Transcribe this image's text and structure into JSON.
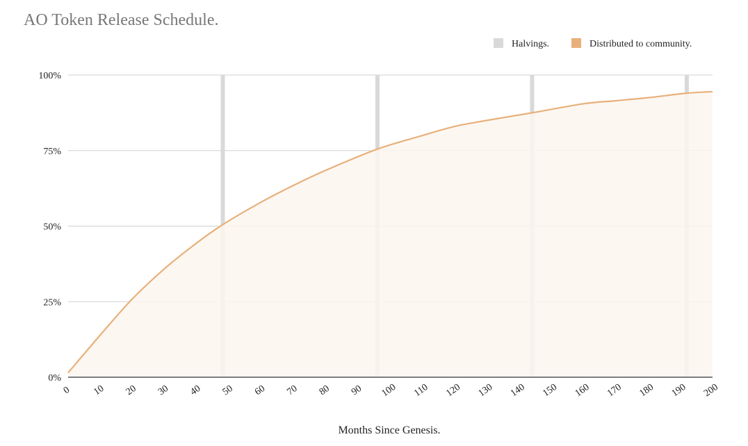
{
  "chart_data": {
    "type": "area",
    "title": "AO Token Release Schedule.",
    "xlabel": "Months Since Genesis.",
    "ylabel": "",
    "xlim": [
      0,
      200
    ],
    "ylim": [
      0,
      100
    ],
    "x_ticks": [
      0,
      10,
      20,
      30,
      40,
      50,
      60,
      70,
      80,
      90,
      100,
      110,
      120,
      130,
      140,
      150,
      160,
      170,
      180,
      190,
      200
    ],
    "y_ticks": [
      {
        "value": 0,
        "label": "0%"
      },
      {
        "value": 25,
        "label": "25%"
      },
      {
        "value": 50,
        "label": "50%"
      },
      {
        "value": 75,
        "label": "75%"
      },
      {
        "value": 100,
        "label": "100%"
      }
    ],
    "grid": true,
    "legend": {
      "position": "top-right",
      "entries": [
        {
          "name": "Halvings.",
          "color": "#d9d9d9"
        },
        {
          "name": "Distributed to community.",
          "color": "#e8b07a"
        }
      ]
    },
    "halvings": [
      48,
      96,
      144,
      192
    ],
    "series": [
      {
        "name": "Distributed to community.",
        "color": "#e8b07a",
        "fill": "#fdf6f0",
        "x": [
          0,
          10,
          20,
          30,
          40,
          48,
          60,
          70,
          80,
          96,
          110,
          120,
          130,
          144,
          160,
          170,
          180,
          192,
          200
        ],
        "y": [
          1.5,
          14,
          26,
          36,
          44.5,
          50.5,
          58,
          63.5,
          68.5,
          75.5,
          80,
          83,
          85,
          87.5,
          90.5,
          91.5,
          92.5,
          94,
          94.5
        ]
      }
    ]
  },
  "colors": {
    "title": "#777777",
    "text": "#222222",
    "grid": "#d0d0d0",
    "axis": "#333333"
  }
}
